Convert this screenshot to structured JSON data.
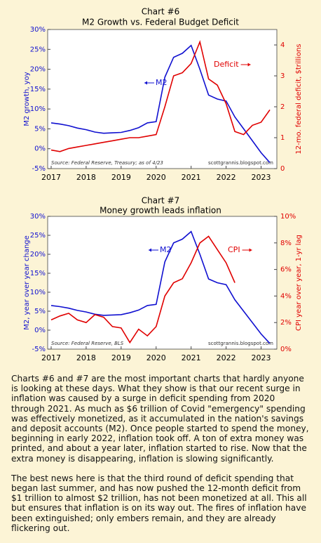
{
  "chart_data": [
    {
      "type": "line",
      "title": "Chart #6",
      "subtitle": "M2 Growth vs. Federal Budget Deficit",
      "x": [
        2017,
        2017.25,
        2017.5,
        2017.75,
        2018,
        2018.25,
        2018.5,
        2018.75,
        2019,
        2019.25,
        2019.5,
        2019.75,
        2020,
        2020.25,
        2020.5,
        2020.75,
        2021,
        2021.25,
        2021.5,
        2021.75,
        2022,
        2022.25,
        2022.5,
        2022.75,
        2023,
        2023.25
      ],
      "xlim": [
        2016.9,
        2023.45
      ],
      "xticks": [
        2017,
        2018,
        2019,
        2020,
        2021,
        2022,
        2023
      ],
      "ylim": [
        -5,
        30
      ],
      "yticks": [
        {
          "value": -5,
          "label": "-5%"
        },
        {
          "value": 0,
          "label": "0%"
        },
        {
          "value": 5,
          "label": "5%"
        },
        {
          "value": 10,
          "label": "10%"
        },
        {
          "value": 15,
          "label": "15%"
        },
        {
          "value": 20,
          "label": "20%"
        },
        {
          "value": 25,
          "label": "25%"
        },
        {
          "value": 30,
          "label": "30%"
        }
      ],
      "y_label": "M2 growth, yoy",
      "y2lim": [
        0,
        4.5
      ],
      "y2ticks": [
        0,
        1,
        2,
        3,
        4
      ],
      "y2_label": "12-mo. federal deficit, $trillions",
      "series": [
        {
          "name": "M2",
          "color": "#1010d0",
          "values": [
            6.5,
            6.2,
            5.8,
            5.2,
            4.8,
            4.2,
            3.9,
            4.0,
            4.1,
            4.6,
            5.3,
            6.5,
            6.8,
            18,
            23,
            24,
            26,
            20,
            13.5,
            12.5,
            12,
            8,
            5,
            2,
            -1,
            -3.5
          ]
        },
        {
          "name": "Deficit",
          "color": "#e00000",
          "axis": "y2",
          "values": [
            0.6,
            0.55,
            0.65,
            0.7,
            0.75,
            0.8,
            0.85,
            0.9,
            0.95,
            1.0,
            1.0,
            1.05,
            1.1,
            2.0,
            3.0,
            3.1,
            3.4,
            4.1,
            2.9,
            2.7,
            2.1,
            1.2,
            1.1,
            1.4,
            1.5,
            1.9
          ]
        }
      ],
      "source": "Source: Federal Reserve, Treasury; as of 4/23",
      "site": "scottgrannis.blogspot.com"
    },
    {
      "type": "line",
      "title": "Chart #7",
      "subtitle": "Money growth leads inflation",
      "x": [
        2017,
        2017.25,
        2017.5,
        2017.75,
        2018,
        2018.25,
        2018.5,
        2018.75,
        2019,
        2019.25,
        2019.5,
        2019.75,
        2020,
        2020.25,
        2020.5,
        2020.75,
        2021,
        2021.25,
        2021.5,
        2021.75,
        2022,
        2022.25,
        2022.5,
        2022.75,
        2023,
        2023.25
      ],
      "xlim": [
        2016.9,
        2023.45
      ],
      "xticks": [
        2017,
        2018,
        2019,
        2020,
        2021,
        2022,
        2023
      ],
      "ylim": [
        -5,
        30
      ],
      "yticks": [
        {
          "value": -5,
          "label": "-5%"
        },
        {
          "value": 0,
          "label": "0%"
        },
        {
          "value": 5,
          "label": "5%"
        },
        {
          "value": 10,
          "label": "10%"
        },
        {
          "value": 15,
          "label": "15%"
        },
        {
          "value": 20,
          "label": "20%"
        },
        {
          "value": 25,
          "label": "25%"
        },
        {
          "value": 30,
          "label": "30%"
        }
      ],
      "y_label": "M2, year over year change",
      "y2lim": [
        0,
        10
      ],
      "y2ticks": [
        {
          "value": 0,
          "label": "0%"
        },
        {
          "value": 2,
          "label": "2%"
        },
        {
          "value": 4,
          "label": "4%"
        },
        {
          "value": 6,
          "label": "6%"
        },
        {
          "value": 8,
          "label": "8%"
        },
        {
          "value": 10,
          "label": "10%"
        }
      ],
      "y2_label": "CPI year over year, 1-yr lag",
      "series": [
        {
          "name": "M2",
          "color": "#1010d0",
          "values": [
            6.5,
            6.2,
            5.8,
            5.2,
            4.8,
            4.2,
            3.9,
            4.0,
            4.1,
            4.6,
            5.3,
            6.5,
            6.8,
            18,
            23,
            24,
            26,
            20,
            13.5,
            12.5,
            12,
            8,
            5,
            2,
            -1,
            -3.5
          ]
        },
        {
          "name": "CPI",
          "color": "#e00000",
          "axis": "y2",
          "values": [
            2.2,
            2.5,
            2.7,
            2.2,
            2.0,
            2.6,
            2.4,
            1.7,
            1.6,
            0.5,
            1.5,
            1.0,
            1.7,
            4.0,
            5.0,
            5.3,
            6.5,
            8.0,
            8.5,
            7.5,
            6.5,
            5.0,
            null,
            null,
            null,
            null
          ]
        }
      ],
      "source": "Source: Federal Reserve, BLS",
      "site": "scottgrannis.blogspot.com"
    }
  ],
  "text": {
    "paragraphs": [
      "Charts #6 and #7 are the most important charts that hardly anyone is looking at these days. What they show is that our recent surge in inflation was caused by a surge in deficit spending from 2020 through 2021. As much as $6 trillion of Covid \"emergency\" spending was effectively monetized, as it accumulated in the nation's savings and deposit accounts (M2). Once people started to spend the money, beginning in early 2022, inflation took off. A ton of extra money was printed, and about a year later, inflation started to rise. Now that the extra money is disappearing, inflation is slowing significantly.",
      "The best news here is that the third round of deficit spending that began last summer, and has now pushed the 12-month deficit from $1 trillion to almost $2 trillion, has not been monetized at all. This all but ensures that inflation is on its way out. The fires of inflation have been extinguished; only embers remain, and they are already flickering out."
    ]
  }
}
